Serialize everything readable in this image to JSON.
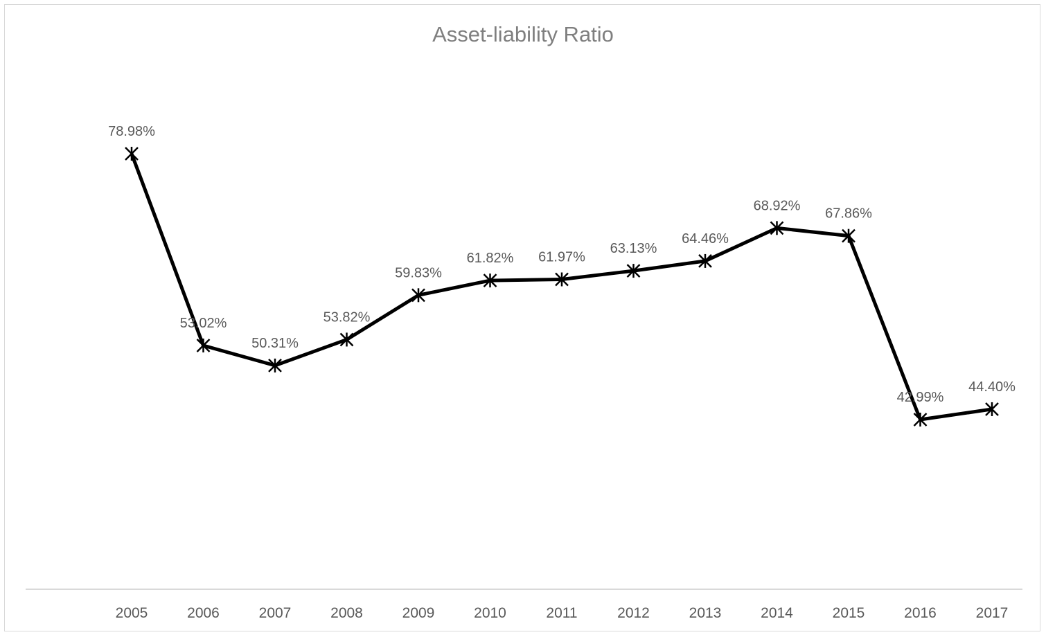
{
  "chart_data": {
    "type": "line",
    "title": "Asset-liability Ratio",
    "xlabel": "",
    "ylabel": "",
    "categories": [
      "2005",
      "2006",
      "2007",
      "2008",
      "2009",
      "2010",
      "2011",
      "2012",
      "2013",
      "2014",
      "2015",
      "2016",
      "2017"
    ],
    "series": [
      {
        "values": [
          78.98,
          53.02,
          50.31,
          53.82,
          59.83,
          61.82,
          61.97,
          63.13,
          64.46,
          68.92,
          67.86,
          42.99,
          44.4
        ],
        "labels": [
          "78.98%",
          "53.02%",
          "50.31%",
          "53.82%",
          "59.83%",
          "61.82%",
          "61.97%",
          "63.13%",
          "64.46%",
          "68.92%",
          "67.86%",
          "42.99%",
          "44.40%"
        ],
        "color": "#000000",
        "marker": "star"
      }
    ],
    "grid": false,
    "legend": "none",
    "y_axis_visible": false
  }
}
